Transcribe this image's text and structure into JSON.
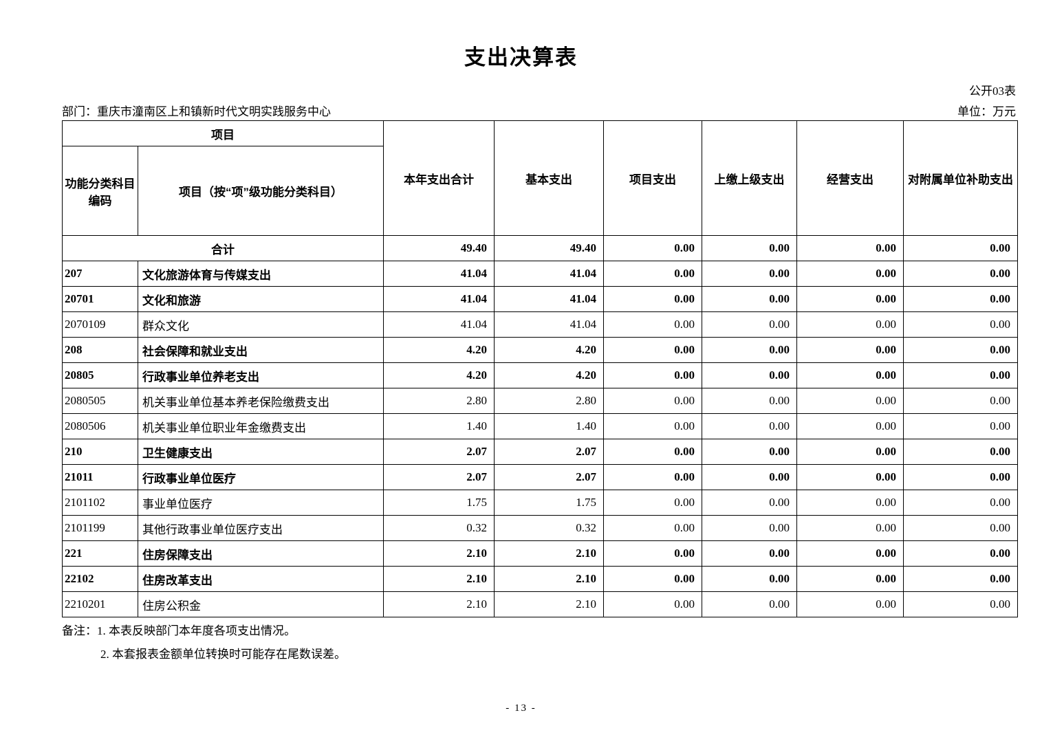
{
  "page": {
    "title": "支出决算表",
    "table_number": "公开03表",
    "department": "部门：重庆市潼南区上和镇新时代文明实践服务中心",
    "unit": "单位：万元",
    "page_number": "- 13 -"
  },
  "table": {
    "header": {
      "project_group": "项目",
      "function_code": "功能分类科目编码",
      "item_title": "项目（按“项”级功能分类科目）",
      "columns": [
        "本年支出合计",
        "基本支出",
        "项目支出",
        "上缴上级支出",
        "经营支出",
        "对附属单位补助支出"
      ]
    },
    "rows": [
      {
        "code": "",
        "name": "合计",
        "merged": true,
        "bold": true,
        "values": [
          "49.40",
          "49.40",
          "0.00",
          "0.00",
          "0.00",
          "0.00"
        ]
      },
      {
        "code": "207",
        "name": "文化旅游体育与传媒支出",
        "merged": false,
        "bold": true,
        "values": [
          "41.04",
          "41.04",
          "0.00",
          "0.00",
          "0.00",
          "0.00"
        ]
      },
      {
        "code": "20701",
        "name": "文化和旅游",
        "merged": false,
        "bold": true,
        "values": [
          "41.04",
          "41.04",
          "0.00",
          "0.00",
          "0.00",
          "0.00"
        ]
      },
      {
        "code": "2070109",
        "name": "群众文化",
        "merged": false,
        "bold": false,
        "values": [
          "41.04",
          "41.04",
          "0.00",
          "0.00",
          "0.00",
          "0.00"
        ]
      },
      {
        "code": "208",
        "name": "社会保障和就业支出",
        "merged": false,
        "bold": true,
        "values": [
          "4.20",
          "4.20",
          "0.00",
          "0.00",
          "0.00",
          "0.00"
        ]
      },
      {
        "code": "20805",
        "name": "行政事业单位养老支出",
        "merged": false,
        "bold": true,
        "values": [
          "4.20",
          "4.20",
          "0.00",
          "0.00",
          "0.00",
          "0.00"
        ]
      },
      {
        "code": "2080505",
        "name": "机关事业单位基本养老保险缴费支出",
        "merged": false,
        "bold": false,
        "values": [
          "2.80",
          "2.80",
          "0.00",
          "0.00",
          "0.00",
          "0.00"
        ]
      },
      {
        "code": "2080506",
        "name": "机关事业单位职业年金缴费支出",
        "merged": false,
        "bold": false,
        "values": [
          "1.40",
          "1.40",
          "0.00",
          "0.00",
          "0.00",
          "0.00"
        ]
      },
      {
        "code": "210",
        "name": "卫生健康支出",
        "merged": false,
        "bold": true,
        "values": [
          "2.07",
          "2.07",
          "0.00",
          "0.00",
          "0.00",
          "0.00"
        ]
      },
      {
        "code": "21011",
        "name": "行政事业单位医疗",
        "merged": false,
        "bold": true,
        "values": [
          "2.07",
          "2.07",
          "0.00",
          "0.00",
          "0.00",
          "0.00"
        ]
      },
      {
        "code": "2101102",
        "name": "事业单位医疗",
        "merged": false,
        "bold": false,
        "values": [
          "1.75",
          "1.75",
          "0.00",
          "0.00",
          "0.00",
          "0.00"
        ]
      },
      {
        "code": "2101199",
        "name": "其他行政事业单位医疗支出",
        "merged": false,
        "bold": false,
        "values": [
          "0.32",
          "0.32",
          "0.00",
          "0.00",
          "0.00",
          "0.00"
        ]
      },
      {
        "code": "221",
        "name": "住房保障支出",
        "merged": false,
        "bold": true,
        "values": [
          "2.10",
          "2.10",
          "0.00",
          "0.00",
          "0.00",
          "0.00"
        ]
      },
      {
        "code": "22102",
        "name": "住房改革支出",
        "merged": false,
        "bold": true,
        "values": [
          "2.10",
          "2.10",
          "0.00",
          "0.00",
          "0.00",
          "0.00"
        ]
      },
      {
        "code": "2210201",
        "name": "住房公积金",
        "merged": false,
        "bold": false,
        "values": [
          "2.10",
          "2.10",
          "0.00",
          "0.00",
          "0.00",
          "0.00"
        ]
      }
    ]
  },
  "notes": {
    "prefix": "备注：",
    "lines": [
      "1. 本表反映部门本年度各项支出情况。",
      "2. 本套报表金额单位转换时可能存在尾数误差。"
    ]
  }
}
